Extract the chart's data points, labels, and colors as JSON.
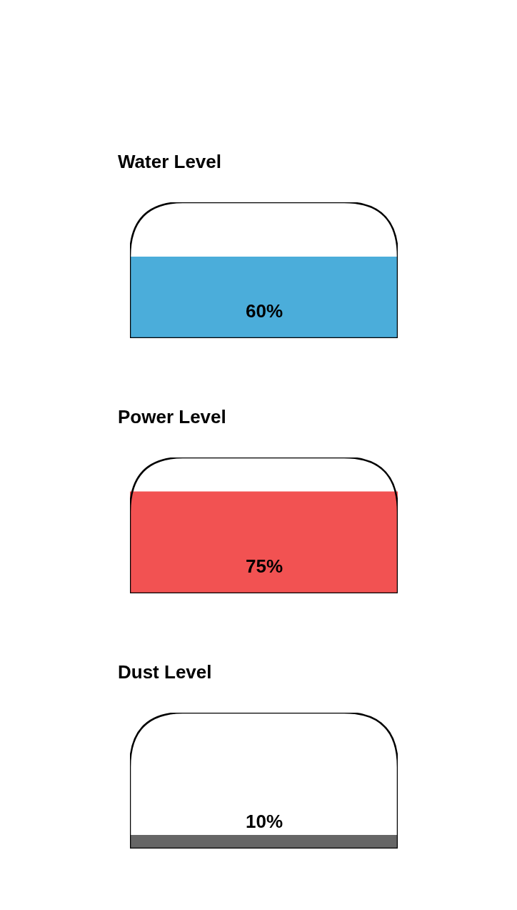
{
  "chart_data": [
    {
      "type": "bar",
      "title": "Water Level",
      "categories": [
        null
      ],
      "values": [
        60
      ],
      "colors": [
        "#4badda"
      ],
      "value_labels": [
        "60%"
      ],
      "ylim": [
        0,
        100
      ],
      "tick_labels": false
    },
    {
      "type": "bar",
      "title": "Power Level",
      "categories": [
        null
      ],
      "values": [
        75
      ],
      "colors": [
        "#f25252"
      ],
      "value_labels": [
        "75%"
      ],
      "ylim": [
        0,
        100
      ],
      "tick_labels": false
    },
    {
      "type": "bar",
      "title": "Dust Level",
      "categories": [
        null
      ],
      "values": [
        10
      ],
      "colors": [
        "#666666"
      ],
      "value_labels": [
        "10%"
      ],
      "ylim": [
        0,
        100
      ],
      "tick_labels": false
    }
  ]
}
